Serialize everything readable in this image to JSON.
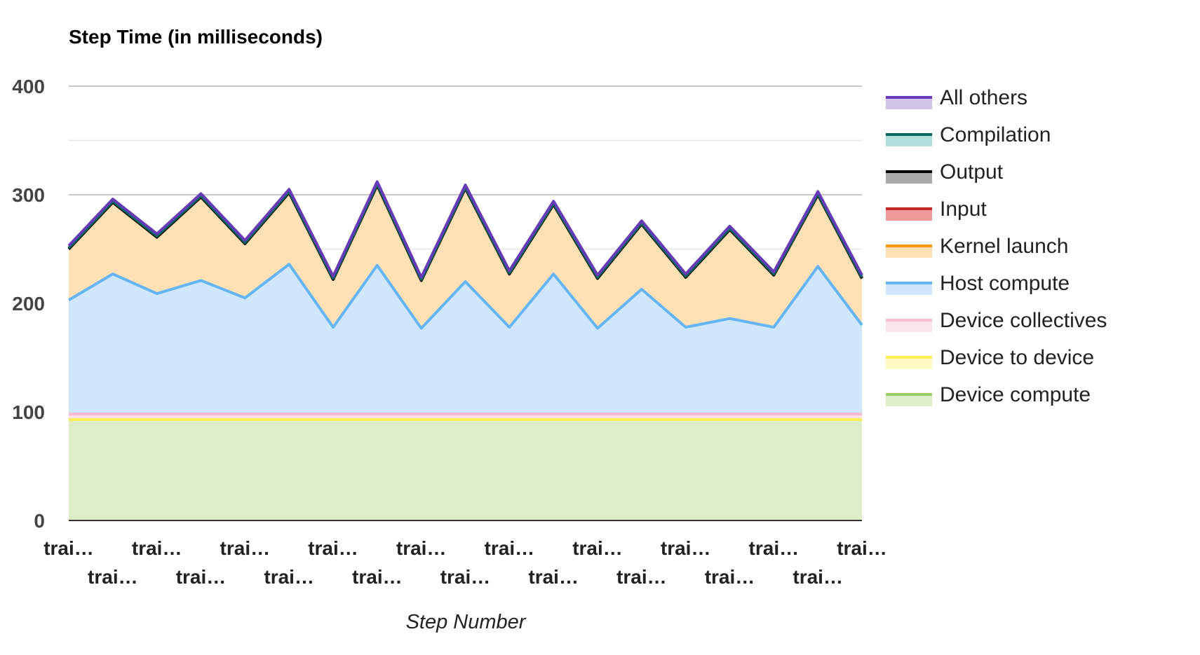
{
  "chart_data": {
    "type": "area",
    "stacked": true,
    "title": "Step Time (in milliseconds)",
    "xlabel": "Step Number",
    "ylabel": "",
    "ylim": [
      0,
      400
    ],
    "yticks": [
      "0",
      "100",
      "200",
      "300",
      "400"
    ],
    "grid": true,
    "legend_position": "right",
    "categories": [
      "trai…",
      "trai…",
      "trai…",
      "trai…",
      "trai…",
      "trai…",
      "trai…",
      "trai…",
      "trai…",
      "trai…",
      "trai…",
      "trai…",
      "trai…",
      "trai…",
      "trai…",
      "trai…",
      "trai…",
      "trai…",
      "trai…"
    ],
    "series": [
      {
        "name": "Device compute",
        "line_color": "#9ccc65",
        "fill_color": "#dcedc8",
        "values": [
          93,
          93,
          93,
          93,
          93,
          93,
          93,
          93,
          93,
          93,
          93,
          93,
          93,
          93,
          93,
          93,
          93,
          93,
          93
        ]
      },
      {
        "name": "Device to device",
        "line_color": "#ffee58",
        "fill_color": "#fff9c4",
        "values": [
          0,
          0,
          0,
          0,
          0,
          0,
          0,
          0,
          0,
          0,
          0,
          0,
          0,
          0,
          0,
          0,
          0,
          0,
          0
        ]
      },
      {
        "name": "Device collectives",
        "line_color": "#f8bbd0",
        "fill_color": "#fce4ec",
        "values": [
          5,
          5,
          5,
          5,
          5,
          5,
          5,
          5,
          5,
          5,
          5,
          5,
          5,
          5,
          5,
          5,
          5,
          5,
          5
        ]
      },
      {
        "name": "Host compute",
        "line_color": "#64b5f6",
        "fill_color": "#cfe6fb",
        "values": [
          105,
          129,
          111,
          123,
          107,
          138,
          80,
          137,
          79,
          122,
          80,
          129,
          79,
          115,
          80,
          88,
          80,
          136,
          82
        ]
      },
      {
        "name": "Kernel launch",
        "line_color": "#ff9800",
        "fill_color": "#fde0b4",
        "values": [
          47,
          66,
          52,
          77,
          50,
          66,
          44,
          74,
          44,
          86,
          49,
          64,
          46,
          60,
          46,
          82,
          48,
          66,
          43
        ]
      },
      {
        "name": "Input",
        "line_color": "#c62828",
        "fill_color": "#ef9a9a",
        "values": [
          0,
          0,
          0,
          0,
          0,
          0,
          0,
          0,
          0,
          0,
          0,
          0,
          0,
          0,
          0,
          0,
          0,
          0,
          0
        ]
      },
      {
        "name": "Output",
        "line_color": "#000000",
        "fill_color": "#aaaaaa",
        "values": [
          0,
          0,
          0,
          0,
          0,
          0,
          0,
          0,
          0,
          0,
          0,
          0,
          0,
          0,
          0,
          0,
          0,
          0,
          0
        ]
      },
      {
        "name": "Compilation",
        "line_color": "#00695c",
        "fill_color": "#b2dfdb",
        "values": [
          1,
          1,
          1,
          1,
          1,
          1,
          1,
          1,
          1,
          1,
          1,
          1,
          1,
          1,
          1,
          1,
          1,
          1,
          1
        ]
      },
      {
        "name": "All others",
        "line_color": "#673ab7",
        "fill_color": "#d1c4e9",
        "values": [
          2,
          2,
          2,
          2,
          2,
          2,
          2,
          2,
          2,
          2,
          2,
          2,
          2,
          2,
          2,
          2,
          2,
          2,
          2
        ]
      }
    ],
    "legend_order": [
      "All others",
      "Compilation",
      "Output",
      "Input",
      "Kernel launch",
      "Host compute",
      "Device collectives",
      "Device to device",
      "Device compute"
    ]
  }
}
